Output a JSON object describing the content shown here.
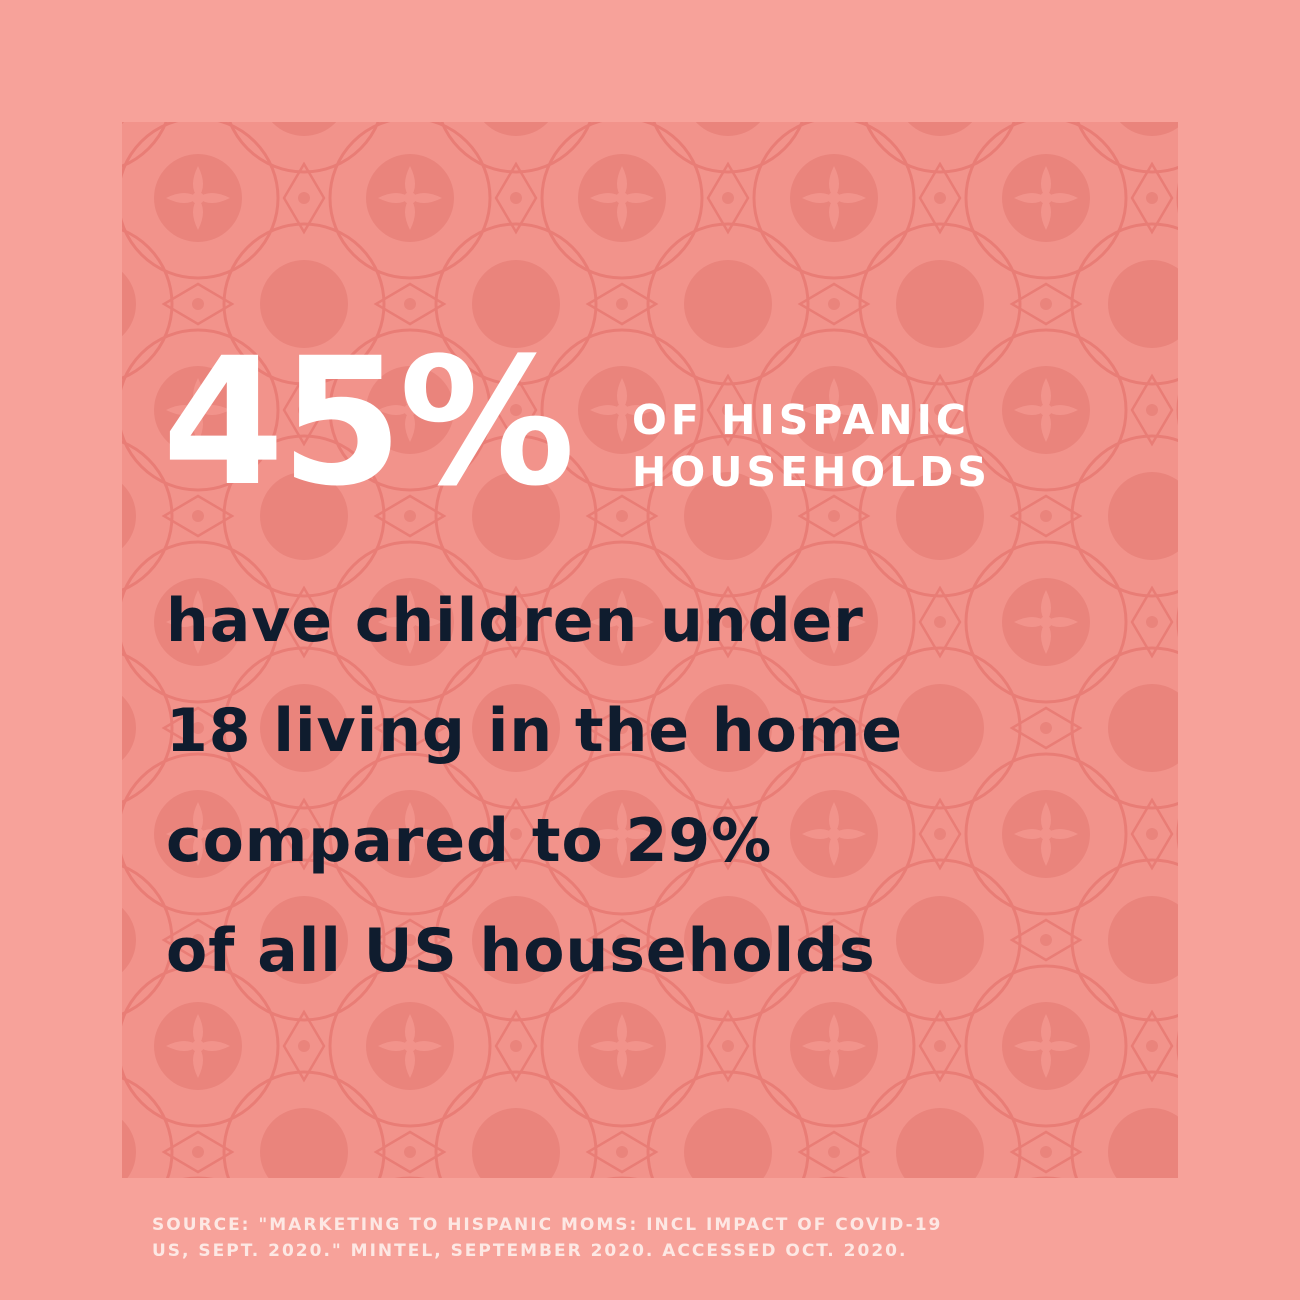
{
  "colors": {
    "outer_background": "#f7a29a",
    "panel_background": "#f2938b",
    "pattern": "#e97d76",
    "headline": "#ffffff",
    "body_text": "#0f1c2e",
    "source_text": "#fde8e4"
  },
  "stat": {
    "value": "45%",
    "label_line1": "OF HISPANIC",
    "label_line2": "HOUSEHOLDS"
  },
  "body": {
    "line1": "have children under",
    "line2": "18 living in the home",
    "line3": "compared to 29%",
    "line4": "of all US households"
  },
  "source": {
    "line1": "SOURCE: \"MARKETING TO HISPANIC MOMS: INCL IMPACT OF COVID-19",
    "line2": "US, SEPT. 2020.\" MINTEL, SEPTEMBER 2020. ACCESSED OCT. 2020."
  }
}
